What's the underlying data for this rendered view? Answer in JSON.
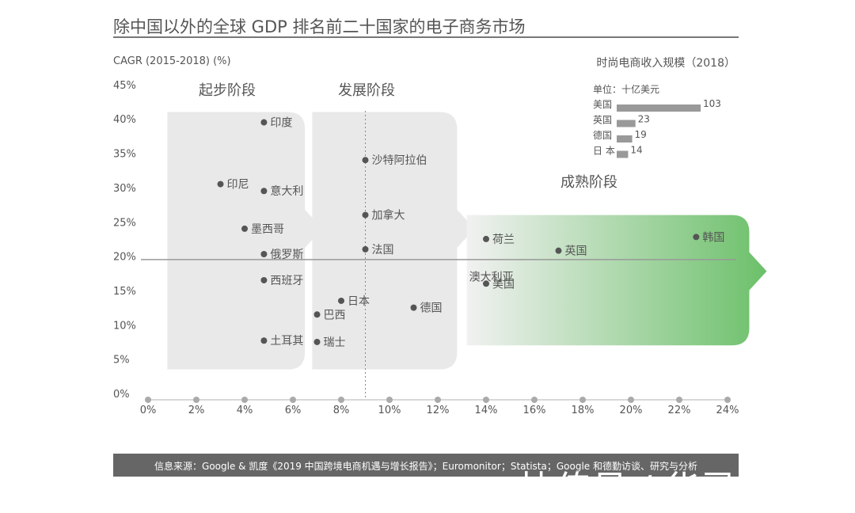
{
  "colors": {
    "text": "#555555",
    "stage_fill": "#e9e9e9",
    "mature_gradient_start": "#f1f1f1",
    "mature_gradient_end": "#6cc06a",
    "point": "#555555",
    "inset_bar": "#999999",
    "source_bar": "#666666",
    "axis_line": "#999999"
  },
  "header": {
    "title": "除中国以外的全球 GDP 排名前二十国家的电子商务市场"
  },
  "chart_data": {
    "type": "scatter",
    "title": "除中国以外的全球 GDP 排名前二十国家的电子商务市场",
    "ylabel": "CAGR (2015-2018) (%)",
    "xlabel": "",
    "xlim": [
      0,
      24
    ],
    "ylim": [
      0,
      45
    ],
    "x_ticks": [
      "0%",
      "2%",
      "4%",
      "6%",
      "8%",
      "10%",
      "12%",
      "14%",
      "16%",
      "18%",
      "20%",
      "22%",
      "24%"
    ],
    "y_ticks": [
      "45%",
      "40%",
      "35%",
      "30%",
      "25%",
      "20%",
      "15%",
      "10%",
      "5%",
      "0%"
    ],
    "reference_line_y": 19.5,
    "stages": [
      {
        "name": "起步阶段",
        "x_range": [
          0.8,
          6.5
        ],
        "y_range": [
          3.5,
          41
        ]
      },
      {
        "name": "发展阶段",
        "x_range": [
          6.8,
          12.8
        ],
        "y_range": [
          3.5,
          41
        ]
      },
      {
        "name": "成熟阶段",
        "x_range": [
          13.2,
          24.9
        ],
        "y_range": [
          7,
          26
        ]
      }
    ],
    "points": [
      {
        "label": "印度",
        "x": 4.8,
        "y": 39.5
      },
      {
        "label": "沙特阿拉伯",
        "x": 9.0,
        "y": 34.0
      },
      {
        "label": "印尼",
        "x": 3.0,
        "y": 30.5
      },
      {
        "label": "意大利",
        "x": 4.8,
        "y": 29.5
      },
      {
        "label": "加拿大",
        "x": 9.0,
        "y": 26.0
      },
      {
        "label": "墨西哥",
        "x": 4.0,
        "y": 24.0
      },
      {
        "label": "荷兰",
        "x": 14.0,
        "y": 22.5
      },
      {
        "label": "韩国",
        "x": 22.7,
        "y": 22.8
      },
      {
        "label": "法国",
        "x": 9.0,
        "y": 21.0
      },
      {
        "label": "英国",
        "x": 17.0,
        "y": 20.8
      },
      {
        "label": "俄罗斯",
        "x": 4.8,
        "y": 20.3
      },
      {
        "label": "澳大利亚",
        "x": 13.3,
        "y": 17.0,
        "no_marker": true
      },
      {
        "label": "西班牙",
        "x": 4.8,
        "y": 16.5
      },
      {
        "label": "美国",
        "x": 14.0,
        "y": 16.0
      },
      {
        "label": "日本",
        "x": 8.0,
        "y": 13.5
      },
      {
        "label": "德国",
        "x": 11.0,
        "y": 12.5
      },
      {
        "label": "巴西",
        "x": 7.0,
        "y": 11.5
      },
      {
        "label": "土耳其",
        "x": 4.8,
        "y": 7.7
      },
      {
        "label": "瑞士",
        "x": 7.0,
        "y": 7.5
      }
    ],
    "inset": {
      "title": "时尚电商收入规模（2018）",
      "unit": "单位：十亿美元",
      "bars": [
        {
          "label": "美国",
          "value": 103
        },
        {
          "label": "英国",
          "value": 23
        },
        {
          "label": "德国",
          "value": 19
        },
        {
          "label": "日 本",
          "value": 14
        }
      ]
    }
  },
  "footer": {
    "source": "信息来源：Google & 凯度《2019 中国跨境电商机遇与增长报告》；Euromonitor；Statista；Google 和德勤访谈、研究与分析",
    "watermark": "快传号 / 华灵云科技"
  }
}
